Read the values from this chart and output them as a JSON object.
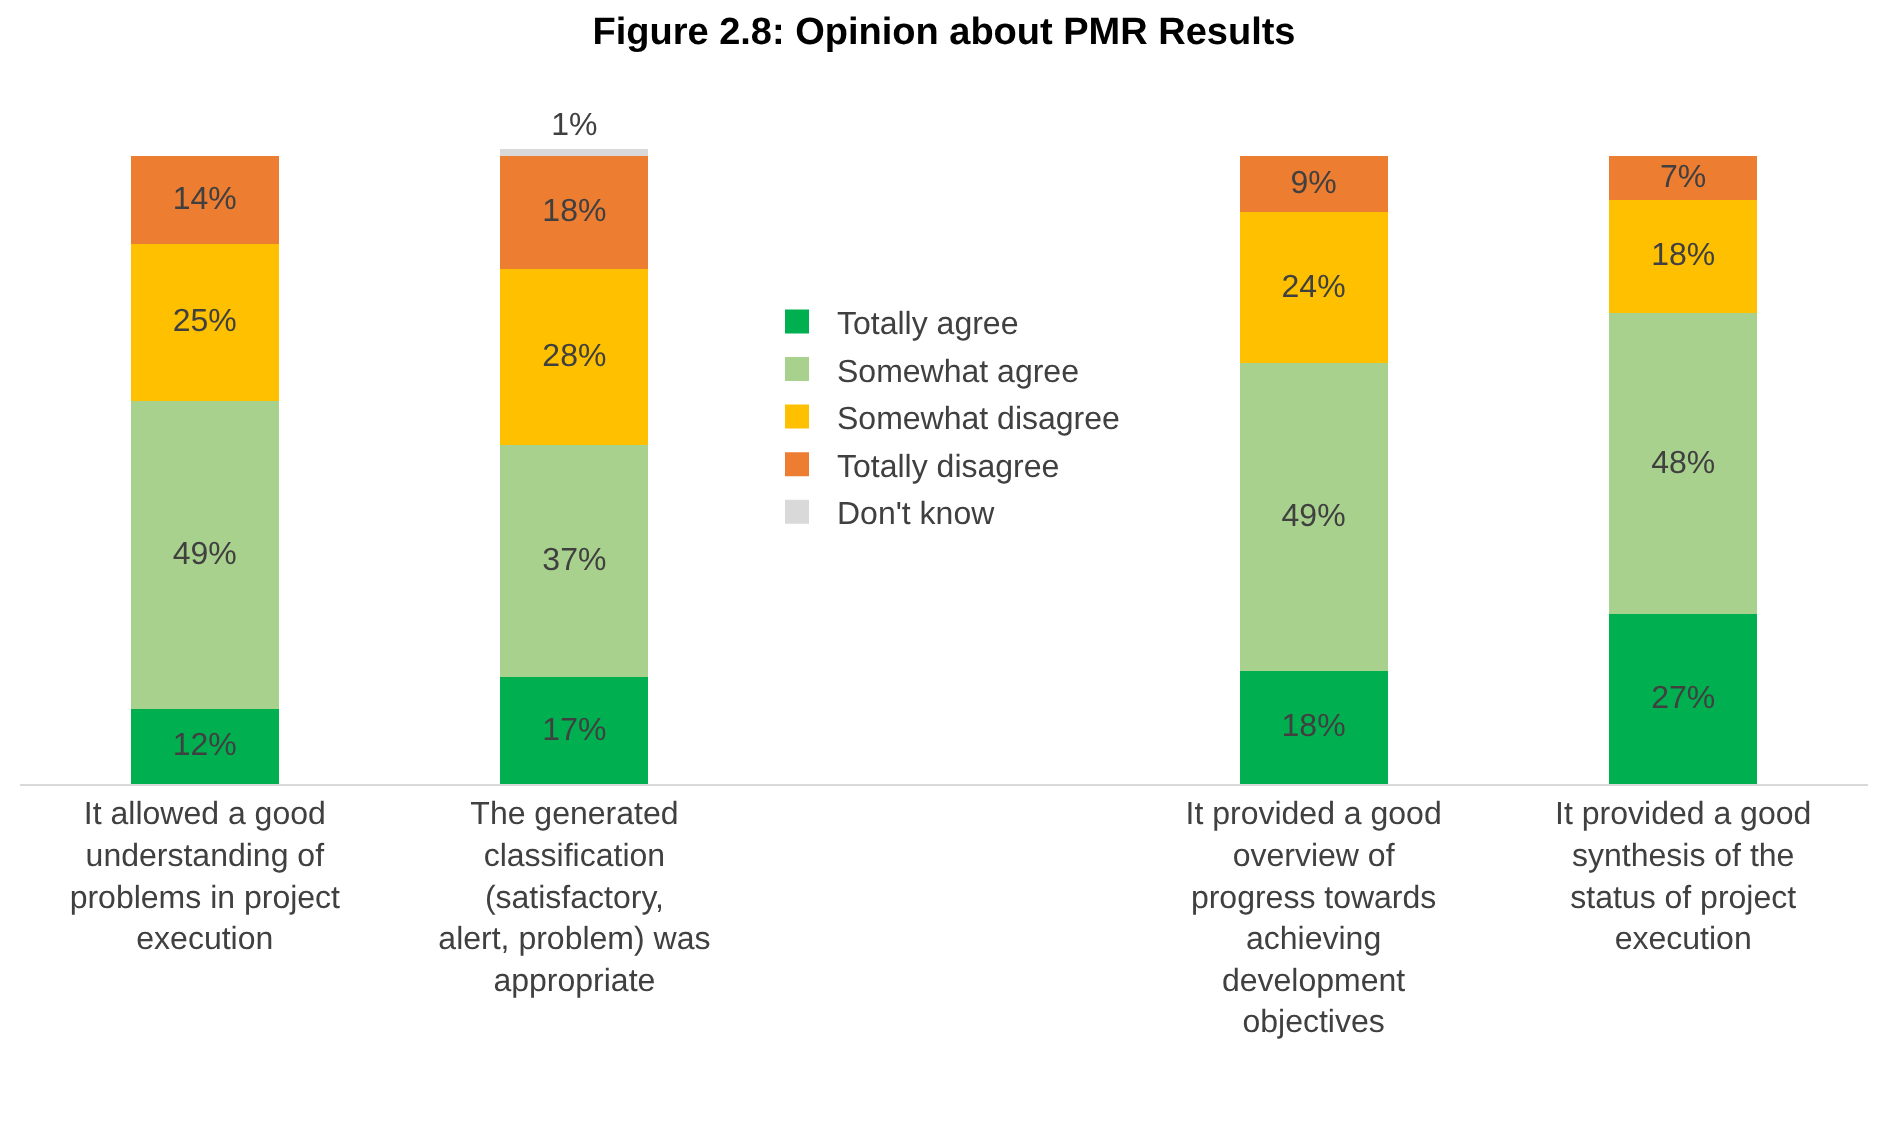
{
  "chart_data": {
    "type": "bar",
    "title": "Figure 2.8: Opinion about PMR Results",
    "stacked": true,
    "legend": "center",
    "categories": [
      "It allowed a good understanding of problems in project execution",
      "The generated classification (satisfactory, alert, problem) was appropriate",
      null,
      "It provided a good overview of progress towards achieving development objectives",
      "It provided a good synthesis of the status of project execution"
    ],
    "series": [
      {
        "name": "Totally agree",
        "color": "#00b050",
        "values": [
          12,
          17,
          null,
          18,
          27
        ],
        "value_labels": [
          "12%",
          "17%",
          null,
          "18%",
          "27%"
        ]
      },
      {
        "name": "Somewhat agree",
        "color": "#a9d18e",
        "values": [
          49,
          37,
          null,
          49,
          48
        ],
        "value_labels": [
          "49%",
          "37%",
          null,
          "49%",
          "48%"
        ]
      },
      {
        "name": "Somewhat disagree",
        "color": "#ffc000",
        "values": [
          25,
          28,
          null,
          24,
          18
        ],
        "value_labels": [
          "25%",
          "28%",
          null,
          "24%",
          "18%"
        ]
      },
      {
        "name": "Totally disagree",
        "color": "#ed7d31",
        "values": [
          14,
          18,
          null,
          9,
          7
        ],
        "value_labels": [
          "14%",
          "18%",
          null,
          "9%",
          "7%"
        ]
      },
      {
        "name": "Don't know",
        "color": "#d9d9d9",
        "values": [
          null,
          1,
          null,
          null,
          null
        ],
        "value_labels": [
          null,
          "1%",
          null,
          null,
          null
        ]
      }
    ]
  }
}
